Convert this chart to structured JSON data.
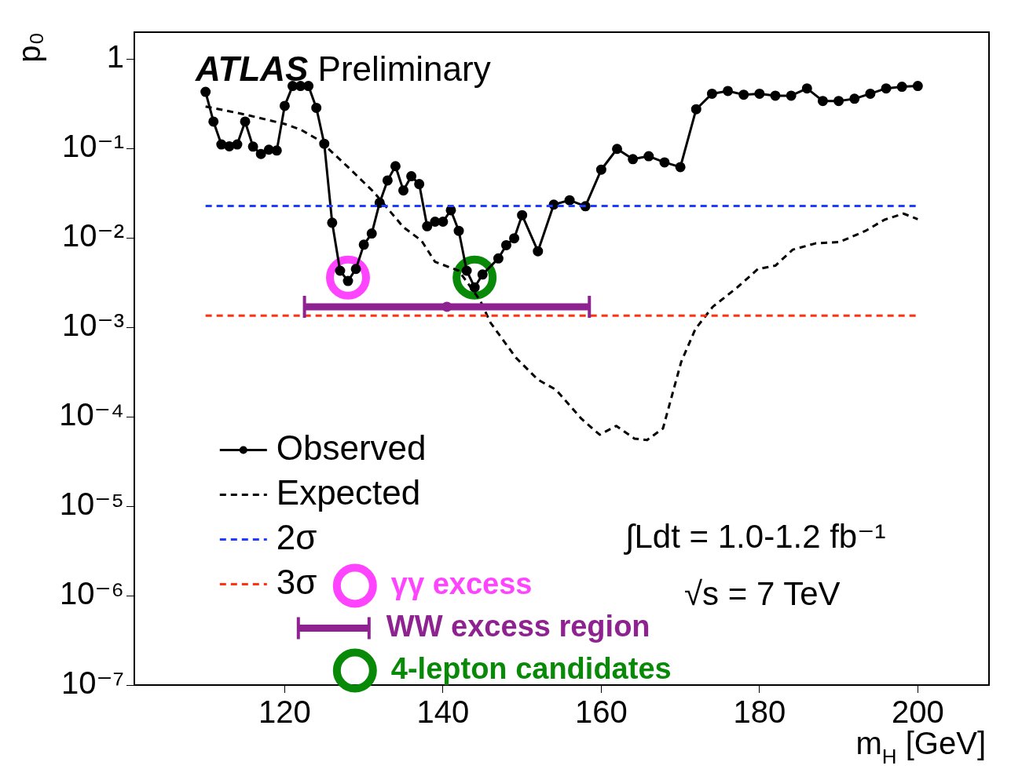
{
  "chart_data": {
    "type": "line",
    "xlabel": "m$_{H}$ [GeV]",
    "ylabel": "p₀",
    "xlim": [
      101,
      209
    ],
    "xticks": [
      120,
      140,
      160,
      180,
      200
    ],
    "ylim": [
      1e-07,
      2
    ],
    "log": "y",
    "yticks": [
      {
        "value": 1e-07,
        "label": "10⁻⁷"
      },
      {
        "value": 1e-06,
        "label": "10⁻⁶"
      },
      {
        "value": 1e-05,
        "label": "10⁻⁵"
      },
      {
        "value": 0.0001,
        "label": "10⁻⁴"
      },
      {
        "value": 0.001,
        "label": "10⁻³"
      },
      {
        "value": 0.01,
        "label": "10⁻²"
      },
      {
        "value": 0.1,
        "label": "10⁻¹"
      },
      1
    ],
    "grid": false,
    "legend": "bottom left",
    "series": [
      {
        "name": "Observed",
        "color": "#000000",
        "marker": "circle",
        "line_style": "solid",
        "x": [
          110,
          111,
          112,
          113,
          114,
          115,
          116,
          117,
          118,
          119,
          120,
          121,
          122,
          123,
          124,
          125,
          126,
          127,
          128,
          129,
          130,
          131,
          132,
          133,
          134,
          135,
          136,
          137,
          138,
          139,
          140,
          141,
          142,
          143,
          144,
          145,
          147,
          148,
          149,
          150,
          152,
          154,
          156,
          158,
          160,
          162,
          164,
          166,
          168,
          170,
          172,
          174,
          176,
          178,
          180,
          182,
          184,
          186,
          188,
          190,
          192,
          194,
          196,
          198,
          200
        ],
        "values": [
          0.43,
          0.2,
          0.111,
          0.106,
          0.111,
          0.2,
          0.105,
          0.087,
          0.097,
          0.095,
          0.3,
          0.5,
          0.5,
          0.5,
          0.285,
          0.113,
          0.0148,
          0.0043,
          0.0033,
          0.0045,
          0.0084,
          0.0112,
          0.0247,
          0.044,
          0.0635,
          0.034,
          0.049,
          0.04,
          0.0135,
          0.0152,
          0.0152,
          0.0204,
          0.012,
          0.0043,
          0.0028,
          0.0039,
          0.0059,
          0.0083,
          0.0099,
          0.018,
          0.0071,
          0.0236,
          0.0264,
          0.0226,
          0.058,
          0.099,
          0.076,
          0.082,
          0.07,
          0.062,
          0.275,
          0.41,
          0.44,
          0.4,
          0.41,
          0.39,
          0.39,
          0.47,
          0.34,
          0.34,
          0.36,
          0.41,
          0.47,
          0.49,
          0.5
        ]
      },
      {
        "name": "Expected",
        "color": "#000000",
        "marker": "none",
        "line_style": "dashed",
        "x": [
          110,
          115,
          120,
          122,
          124.4,
          128,
          131.2,
          135,
          137.3,
          139,
          142,
          144.7,
          146,
          149.2,
          152,
          154.3,
          157.5,
          159.8,
          161.9,
          164.2,
          165.8,
          167.8,
          170.1,
          171.9,
          174.1,
          177.2,
          179.8,
          182,
          184.2,
          187.1,
          190.1,
          193.4,
          195.8,
          198.2,
          200
        ],
        "values": [
          0.295,
          0.24,
          0.188,
          0.163,
          0.123,
          0.062,
          0.033,
          0.0132,
          0.0093,
          0.0054,
          0.0043,
          0.002,
          0.00113,
          0.00046,
          0.00026,
          0.0002,
          9.5e-05,
          6.3e-05,
          7.9e-05,
          5.7e-05,
          5.5e-05,
          7.4e-05,
          0.00041,
          0.00096,
          0.0017,
          0.0028,
          0.0045,
          0.0049,
          0.0074,
          0.0087,
          0.009,
          0.012,
          0.016,
          0.0187,
          0.0162
        ]
      },
      {
        "name": "γγ excess",
        "type": "scatter",
        "color": "#ff44ff",
        "marker": "circle",
        "x": [
          128
        ],
        "values": [
          0.0036
        ]
      },
      {
        "name": "WW excess region",
        "type": "scatter",
        "color": "#8e2290",
        "marker": "circle",
        "x": [
          140.5
        ],
        "values": [
          0.0017
        ],
        "xerrors": [
          [
            122.5,
            158.5
          ]
        ]
      },
      {
        "name": "4-lepton candidates",
        "type": "scatter",
        "color": "#088a08",
        "marker": "circle",
        "x": [
          144
        ],
        "values": [
          0.0036
        ]
      }
    ],
    "ref_lines": [
      {
        "axis": "y",
        "value": 0.0228,
        "label": "2σ",
        "color": "#1f3cff",
        "line_style": "dashed"
      },
      {
        "axis": "y",
        "value": 0.00135,
        "label": "3σ",
        "color": "#ff3311",
        "line_style": "dashed"
      }
    ],
    "annotations": [
      "ATLAS Preliminary",
      "∫Ldt = 1.0-1.2 fb⁻¹",
      "√s = 7 TeV"
    ]
  }
}
